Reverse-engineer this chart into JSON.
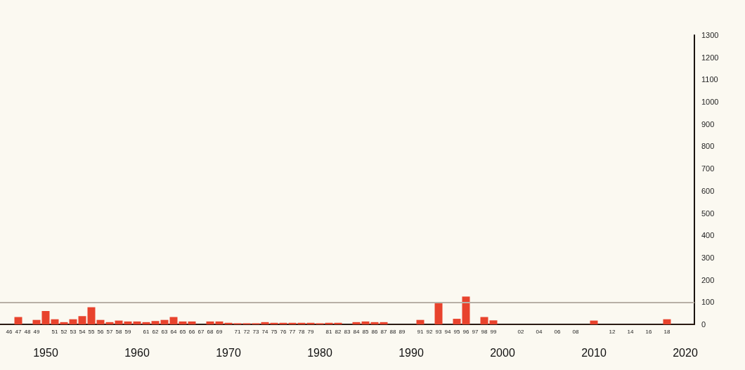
{
  "chart_data": {
    "type": "bar",
    "x": [
      1947,
      1948,
      1949,
      1950,
      1951,
      1952,
      1953,
      1954,
      1955,
      1956,
      1957,
      1958,
      1959,
      1960,
      1961,
      1962,
      1963,
      1964,
      1965,
      1966,
      1967,
      1968,
      1969,
      1970,
      1971,
      1972,
      1973,
      1974,
      1975,
      1976,
      1977,
      1978,
      1979,
      1980,
      1981,
      1982,
      1983,
      1984,
      1985,
      1986,
      1987,
      1988,
      1989,
      1990,
      1991,
      1992,
      1993,
      1994,
      1995,
      1996,
      1997,
      1998,
      1999,
      2010,
      2018
    ],
    "values": [
      33,
      0,
      20,
      60,
      23,
      10,
      23,
      37,
      77,
      20,
      10,
      17,
      13,
      13,
      10,
      15,
      20,
      33,
      13,
      13,
      0,
      13,
      13,
      7,
      5,
      5,
      5,
      10,
      7,
      7,
      7,
      7,
      7,
      5,
      7,
      7,
      0,
      10,
      13,
      10,
      10,
      0,
      0,
      0,
      20,
      0,
      95,
      0,
      25,
      125,
      0,
      33,
      18,
      17,
      23
    ],
    "color": "#e8432d",
    "xlim": [
      1945,
      2021
    ],
    "xticks": [
      {
        "value": 1946,
        "label": "46"
      },
      {
        "value": 1947,
        "label": "47"
      },
      {
        "value": 1948,
        "label": "48"
      },
      {
        "value": 1949,
        "label": "49"
      },
      {
        "value": 1951,
        "label": "51"
      },
      {
        "value": 1952,
        "label": "52"
      },
      {
        "value": 1953,
        "label": "53"
      },
      {
        "value": 1954,
        "label": "54"
      },
      {
        "value": 1955,
        "label": "55"
      },
      {
        "value": 1956,
        "label": "56"
      },
      {
        "value": 1957,
        "label": "57"
      },
      {
        "value": 1958,
        "label": "58"
      },
      {
        "value": 1959,
        "label": "59"
      },
      {
        "value": 1961,
        "label": "61"
      },
      {
        "value": 1962,
        "label": "62"
      },
      {
        "value": 1963,
        "label": "63"
      },
      {
        "value": 1964,
        "label": "64"
      },
      {
        "value": 1965,
        "label": "65"
      },
      {
        "value": 1966,
        "label": "66"
      },
      {
        "value": 1967,
        "label": "67"
      },
      {
        "value": 1968,
        "label": "68"
      },
      {
        "value": 1969,
        "label": "69"
      },
      {
        "value": 1971,
        "label": "71"
      },
      {
        "value": 1972,
        "label": "72"
      },
      {
        "value": 1973,
        "label": "73"
      },
      {
        "value": 1974,
        "label": "74"
      },
      {
        "value": 1975,
        "label": "75"
      },
      {
        "value": 1976,
        "label": "76"
      },
      {
        "value": 1977,
        "label": "77"
      },
      {
        "value": 1978,
        "label": "78"
      },
      {
        "value": 1979,
        "label": "79"
      },
      {
        "value": 1981,
        "label": "81"
      },
      {
        "value": 1982,
        "label": "82"
      },
      {
        "value": 1983,
        "label": "83"
      },
      {
        "value": 1984,
        "label": "84"
      },
      {
        "value": 1985,
        "label": "85"
      },
      {
        "value": 1986,
        "label": "86"
      },
      {
        "value": 1987,
        "label": "87"
      },
      {
        "value": 1988,
        "label": "88"
      },
      {
        "value": 1989,
        "label": "89"
      },
      {
        "value": 1991,
        "label": "91"
      },
      {
        "value": 1992,
        "label": "92"
      },
      {
        "value": 1993,
        "label": "93"
      },
      {
        "value": 1994,
        "label": "94"
      },
      {
        "value": 1995,
        "label": "95"
      },
      {
        "value": 1996,
        "label": "96"
      },
      {
        "value": 1997,
        "label": "97"
      },
      {
        "value": 1998,
        "label": "98"
      },
      {
        "value": 1999,
        "label": "99"
      },
      {
        "value": 2002,
        "label": "02"
      },
      {
        "value": 2004,
        "label": "04"
      },
      {
        "value": 2006,
        "label": "06"
      },
      {
        "value": 2008,
        "label": "08"
      },
      {
        "value": 2012,
        "label": "12"
      },
      {
        "value": 2014,
        "label": "14"
      },
      {
        "value": 2016,
        "label": "16"
      },
      {
        "value": 2018,
        "label": "18"
      }
    ],
    "x2lim": [
      1945,
      2021
    ],
    "x2ticks": [
      1950,
      1960,
      1970,
      1980,
      1990,
      2000,
      2010,
      2020
    ],
    "ylim": [
      0,
      1300
    ],
    "yticks": [
      0,
      100,
      200,
      300,
      400,
      500,
      600,
      700,
      800,
      900,
      1000,
      1100,
      1200,
      1300
    ],
    "ref_lines": [
      {
        "axis": "y",
        "value": 100,
        "color": "#b8b0a6"
      }
    ],
    "grid": false
  }
}
